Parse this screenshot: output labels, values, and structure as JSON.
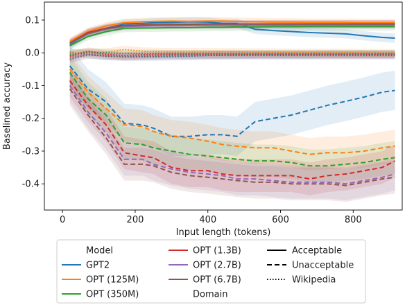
{
  "chart_data": {
    "type": "line",
    "xlabel": "Input length (tokens)",
    "ylabel": "Baselined accuracy",
    "xlim": [
      -50,
      935
    ],
    "ylim": [
      -0.48,
      0.155
    ],
    "xticks": [
      "0",
      "200",
      "400",
      "600",
      "800"
    ],
    "yticks": [
      "0.1",
      "0.0",
      "-0.1",
      "-0.2",
      "-0.3",
      "-0.4"
    ],
    "grid": false,
    "legend_position": "bottom-outside",
    "legend": {
      "model_header": "Model",
      "domain_header": "Domain",
      "models": [
        {
          "name": "GPT2",
          "color": "#1f77b4"
        },
        {
          "name": "OPT (125M)",
          "color": "#ff7f0e"
        },
        {
          "name": "OPT (350M)",
          "color": "#2ca02c"
        },
        {
          "name": "OPT (1.3B)",
          "color": "#d62728"
        },
        {
          "name": "OPT (2.7B)",
          "color": "#9467bd"
        },
        {
          "name": "OPT (6.7B)",
          "color": "#8c564b"
        }
      ],
      "domains": [
        {
          "name": "Acceptable",
          "style": "solid"
        },
        {
          "name": "Unacceptable",
          "style": "dashed"
        },
        {
          "name": "Wikipedia",
          "style": "dotted"
        }
      ]
    },
    "x": [
      20,
      70,
      120,
      170,
      220,
      250,
      300,
      350,
      400,
      440,
      480,
      530,
      580,
      630,
      680,
      730,
      780,
      830,
      880,
      915
    ],
    "series": [
      {
        "model": "GPT2",
        "domain": "Acceptable",
        "values": [
          0.025,
          0.06,
          0.075,
          0.088,
          0.09,
          0.092,
          0.093,
          0.095,
          0.094,
          0.09,
          0.09,
          0.072,
          0.068,
          0.065,
          0.062,
          0.06,
          0.058,
          0.052,
          0.047,
          0.045
        ],
        "band": 0.014
      },
      {
        "model": "OPT (125M)",
        "domain": "Acceptable",
        "values": [
          0.035,
          0.065,
          0.082,
          0.092,
          0.095,
          0.096,
          0.097,
          0.096,
          0.097,
          0.097,
          0.096,
          0.095,
          0.094,
          0.094,
          0.093,
          0.093,
          0.093,
          0.092,
          0.092,
          0.092
        ],
        "band": 0.012
      },
      {
        "model": "OPT (350M)",
        "domain": "Acceptable",
        "values": [
          0.022,
          0.05,
          0.065,
          0.075,
          0.076,
          0.076,
          0.077,
          0.077,
          0.078,
          0.078,
          0.079,
          0.079,
          0.08,
          0.08,
          0.08,
          0.08,
          0.08,
          0.08,
          0.08,
          0.08
        ],
        "band": 0.012
      },
      {
        "model": "OPT (1.3B)",
        "domain": "Acceptable",
        "values": [
          0.03,
          0.062,
          0.075,
          0.083,
          0.085,
          0.086,
          0.086,
          0.087,
          0.087,
          0.087,
          0.087,
          0.087,
          0.088,
          0.088,
          0.088,
          0.088,
          0.088,
          0.088,
          0.088,
          0.088
        ],
        "band": 0.012
      },
      {
        "model": "OPT (2.7B)",
        "domain": "Acceptable",
        "values": [
          0.028,
          0.058,
          0.072,
          0.08,
          0.082,
          0.083,
          0.083,
          0.084,
          0.084,
          0.084,
          0.084,
          0.085,
          0.085,
          0.085,
          0.085,
          0.085,
          0.085,
          0.085,
          0.085,
          0.085
        ],
        "band": 0.012
      },
      {
        "model": "OPT (6.7B)",
        "domain": "Acceptable",
        "values": [
          0.03,
          0.06,
          0.074,
          0.083,
          0.085,
          0.086,
          0.087,
          0.087,
          0.088,
          0.088,
          0.088,
          0.088,
          0.088,
          0.088,
          0.088,
          0.088,
          0.088,
          0.088,
          0.088,
          0.088
        ],
        "band": 0.012
      },
      {
        "model": "GPT2",
        "domain": "Unacceptable",
        "values": [
          -0.04,
          -0.11,
          -0.15,
          -0.215,
          -0.22,
          -0.23,
          -0.255,
          -0.255,
          -0.25,
          -0.25,
          -0.255,
          -0.21,
          -0.2,
          -0.19,
          -0.175,
          -0.16,
          -0.148,
          -0.135,
          -0.12,
          -0.115
        ],
        "band": 0.06
      },
      {
        "model": "OPT (125M)",
        "domain": "Unacceptable",
        "values": [
          -0.05,
          -0.12,
          -0.17,
          -0.22,
          -0.225,
          -0.24,
          -0.255,
          -0.26,
          -0.27,
          -0.28,
          -0.285,
          -0.29,
          -0.29,
          -0.3,
          -0.31,
          -0.305,
          -0.305,
          -0.3,
          -0.29,
          -0.285
        ],
        "band": 0.05
      },
      {
        "model": "OPT (350M)",
        "domain": "Unacceptable",
        "values": [
          -0.06,
          -0.14,
          -0.19,
          -0.275,
          -0.28,
          -0.29,
          -0.3,
          -0.31,
          -0.315,
          -0.32,
          -0.325,
          -0.33,
          -0.33,
          -0.335,
          -0.345,
          -0.345,
          -0.34,
          -0.335,
          -0.325,
          -0.32
        ],
        "band": 0.05
      },
      {
        "model": "OPT (1.3B)",
        "domain": "Unacceptable",
        "values": [
          -0.085,
          -0.16,
          -0.22,
          -0.305,
          -0.315,
          -0.32,
          -0.35,
          -0.36,
          -0.36,
          -0.37,
          -0.375,
          -0.375,
          -0.375,
          -0.375,
          -0.385,
          -0.375,
          -0.37,
          -0.36,
          -0.35,
          -0.33
        ],
        "band": 0.05
      },
      {
        "model": "OPT (2.7B)",
        "domain": "Unacceptable",
        "values": [
          -0.1,
          -0.18,
          -0.245,
          -0.325,
          -0.325,
          -0.34,
          -0.355,
          -0.365,
          -0.37,
          -0.375,
          -0.385,
          -0.385,
          -0.39,
          -0.395,
          -0.395,
          -0.395,
          -0.4,
          -0.39,
          -0.38,
          -0.37
        ],
        "band": 0.05
      },
      {
        "model": "OPT (6.7B)",
        "domain": "Unacceptable",
        "values": [
          -0.11,
          -0.19,
          -0.26,
          -0.34,
          -0.34,
          -0.345,
          -0.365,
          -0.375,
          -0.38,
          -0.385,
          -0.39,
          -0.395,
          -0.395,
          -0.4,
          -0.4,
          -0.4,
          -0.405,
          -0.395,
          -0.385,
          -0.38
        ],
        "band": 0.05
      },
      {
        "model": "GPT2",
        "domain": "Wikipedia",
        "values": [
          0.002,
          -0.005,
          -0.01,
          -0.012,
          -0.012,
          -0.012,
          -0.011,
          -0.01,
          -0.008,
          -0.008,
          -0.007,
          -0.006,
          -0.006,
          -0.006,
          -0.006,
          -0.005,
          -0.005,
          -0.005,
          -0.005,
          -0.005
        ],
        "band": 0.012
      },
      {
        "model": "OPT (125M)",
        "domain": "Wikipedia",
        "values": [
          0.0,
          0.0,
          0.002,
          0.01,
          0.005,
          0.004,
          0.003,
          0.003,
          0.003,
          0.003,
          0.003,
          0.002,
          0.002,
          0.001,
          0.001,
          0.001,
          0.001,
          0.0,
          0.0,
          0.0
        ],
        "band": 0.012
      },
      {
        "model": "OPT (350M)",
        "domain": "Wikipedia",
        "values": [
          -0.005,
          0.002,
          0.0,
          -0.002,
          -0.002,
          -0.002,
          -0.003,
          -0.003,
          -0.003,
          -0.003,
          -0.003,
          -0.003,
          -0.003,
          -0.003,
          -0.003,
          -0.003,
          -0.003,
          -0.003,
          -0.003,
          -0.003
        ],
        "band": 0.012
      },
      {
        "model": "OPT (1.3B)",
        "domain": "Wikipedia",
        "values": [
          -0.01,
          0.005,
          -0.005,
          -0.008,
          -0.006,
          -0.005,
          -0.004,
          -0.004,
          -0.004,
          -0.004,
          -0.004,
          -0.004,
          -0.004,
          -0.004,
          -0.004,
          -0.004,
          -0.004,
          -0.004,
          -0.004,
          -0.004
        ],
        "band": 0.012
      },
      {
        "model": "OPT (2.7B)",
        "domain": "Wikipedia",
        "values": [
          -0.015,
          -0.003,
          -0.008,
          -0.01,
          -0.009,
          -0.008,
          -0.007,
          -0.007,
          -0.007,
          -0.007,
          -0.007,
          -0.007,
          -0.007,
          -0.007,
          -0.007,
          -0.007,
          -0.007,
          -0.007,
          -0.007,
          -0.007
        ],
        "band": 0.012
      },
      {
        "model": "OPT (6.7B)",
        "domain": "Wikipedia",
        "values": [
          -0.02,
          -0.006,
          -0.01,
          -0.012,
          -0.011,
          -0.01,
          -0.009,
          -0.009,
          -0.008,
          -0.008,
          -0.008,
          -0.008,
          -0.008,
          -0.008,
          -0.008,
          -0.008,
          -0.008,
          -0.008,
          -0.008,
          -0.008
        ],
        "band": 0.012
      }
    ]
  }
}
